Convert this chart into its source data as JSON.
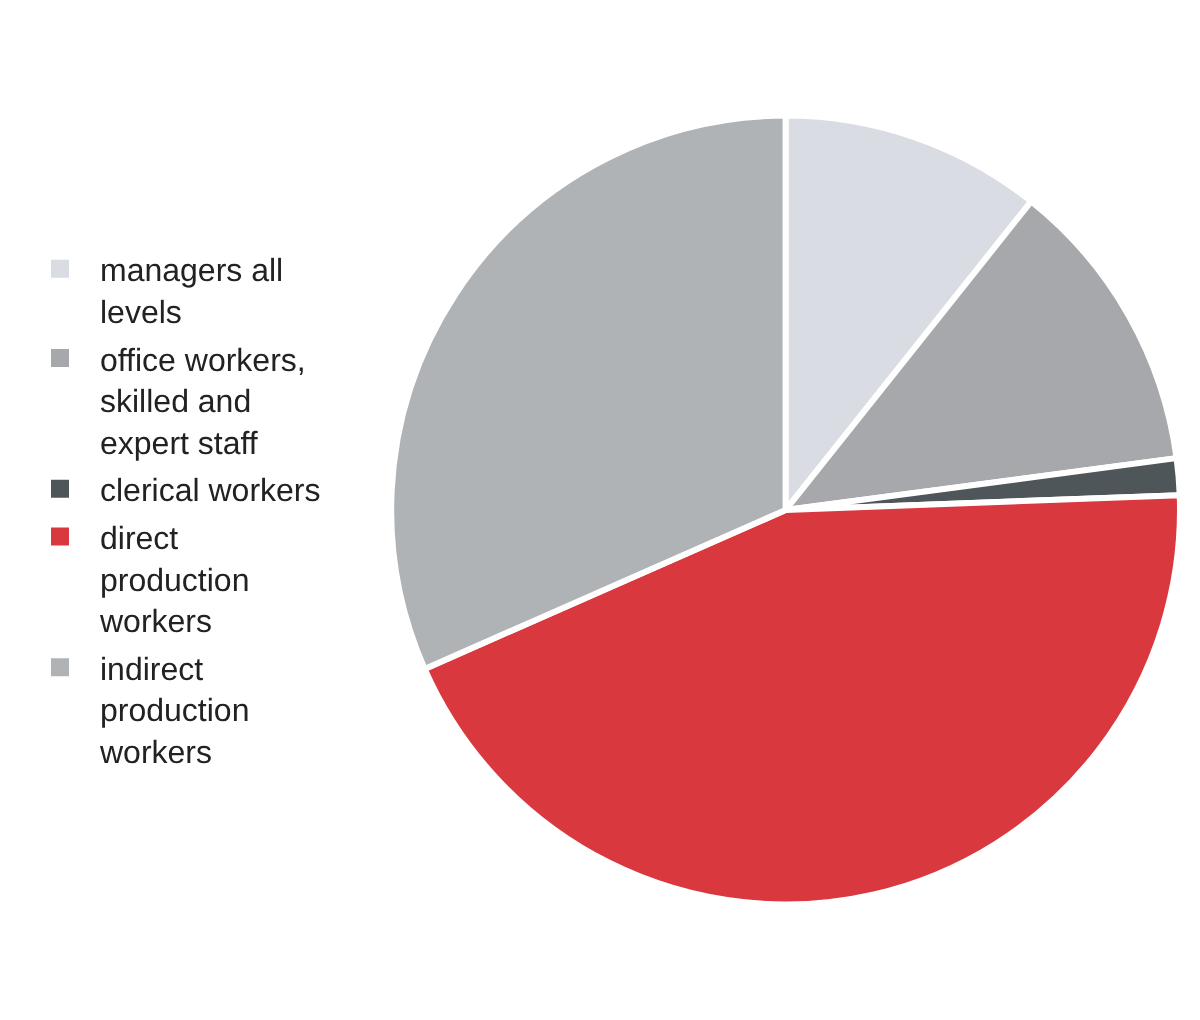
{
  "chart_data": {
    "type": "pie",
    "categories": [
      "managers all levels",
      "office workers, skilled and expert staff",
      "clerical workers",
      "direct production workers",
      "indirect production workers"
    ],
    "values": [
      10.7,
      12.2,
      1.5,
      44,
      31.6
    ],
    "colors": [
      "#d9dce3",
      "#a6a8ab",
      "#4f5659",
      "#d9383f",
      "#b0b3b6"
    ],
    "legend": "left"
  }
}
